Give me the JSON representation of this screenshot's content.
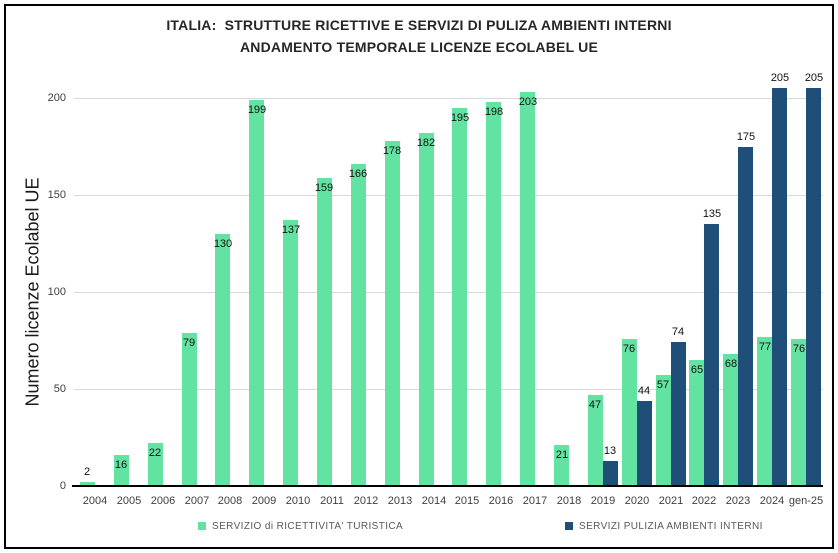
{
  "title": {
    "line1": "ITALIA:  STRUTTURE RICETTIVE E SERVIZI DI PULIZA AMBIENTI INTERNI",
    "line2": "ANDAMENTO TEMPORALE LICENZE ECOLABEL UE"
  },
  "chart_data": {
    "type": "bar",
    "title": "ITALIA: STRUTTURE RICETTIVE E SERVIZI DI PULIZA AMBIENTI INTERNI - ANDAMENTO TEMPORALE LICENZE ECOLABEL UE",
    "xlabel": "",
    "ylabel": "Numero licenze Ecolabel UE",
    "y_ticks": [
      0,
      50,
      100,
      150,
      200
    ],
    "ylim": [
      0,
      210
    ],
    "grid": true,
    "legend_position": "bottom",
    "categories": [
      "2004",
      "2005",
      "2006",
      "2007",
      "2008",
      "2009",
      "2010",
      "2011",
      "2012",
      "2013",
      "2014",
      "2015",
      "2016",
      "2017",
      "2018",
      "2019",
      "2020",
      "2021",
      "2022",
      "2023",
      "2024",
      "gen-25"
    ],
    "series": [
      {
        "name": "SERVIZIO di RICETTIVITA' TURISTICA",
        "color": "#62e3a1",
        "label_position": "inside-end",
        "values": [
          2,
          16,
          22,
          79,
          130,
          199,
          137,
          159,
          166,
          178,
          182,
          195,
          198,
          203,
          21,
          47,
          76,
          57,
          65,
          68,
          77,
          76
        ]
      },
      {
        "name": "SERVIZI PULIZIA AMBIENTI INTERNI",
        "color": "#1f4e79",
        "label_position": "outside-end",
        "values": [
          null,
          null,
          null,
          null,
          null,
          null,
          null,
          null,
          null,
          null,
          null,
          null,
          null,
          null,
          null,
          13,
          44,
          74,
          135,
          175,
          205,
          205
        ]
      }
    ],
    "colors": {
      "gridline": "#d9d9d9",
      "axis_line": "#000000",
      "tick_label": "#404040",
      "data_label": "#111111",
      "title_text": "#262626",
      "legend_text": "#595959"
    }
  }
}
